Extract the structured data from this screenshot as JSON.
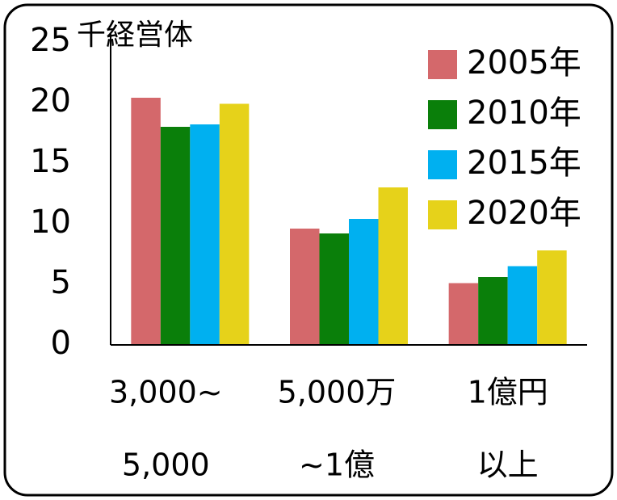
{
  "chart_data": {
    "type": "bar",
    "y_label": "千経営体",
    "categories": [
      [
        "3,000~",
        "5,000"
      ],
      [
        "5,000万",
        "~1億"
      ],
      [
        "1億円",
        "以上"
      ]
    ],
    "series": [
      {
        "name": "2005年",
        "color": "#d4686b",
        "values": [
          20.4,
          9.6,
          5.1
        ]
      },
      {
        "name": "2010年",
        "color": "#0a7f0a",
        "values": [
          18.0,
          9.2,
          5.6
        ]
      },
      {
        "name": "2015年",
        "color": "#00b0f0",
        "values": [
          18.2,
          10.4,
          6.5
        ]
      },
      {
        "name": "2020年",
        "color": "#e6d21a",
        "values": [
          19.9,
          13.0,
          7.8
        ]
      }
    ],
    "ylim": [
      0,
      25
    ],
    "yticks": [
      0,
      5,
      10,
      15,
      20,
      25
    ],
    "legend": "upper right"
  }
}
